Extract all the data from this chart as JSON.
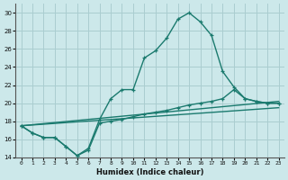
{
  "bg_color": "#cce8ea",
  "grid_color": "#aacdd0",
  "line_color": "#1a7a6e",
  "xlabel": "Humidex (Indice chaleur)",
  "xlim": [
    -0.5,
    23.5
  ],
  "ylim": [
    14,
    31
  ],
  "yticks": [
    14,
    16,
    18,
    20,
    22,
    24,
    26,
    28,
    30
  ],
  "xticks": [
    0,
    1,
    2,
    3,
    4,
    5,
    6,
    7,
    8,
    9,
    10,
    11,
    12,
    13,
    14,
    15,
    16,
    17,
    18,
    19,
    20,
    21,
    22,
    23
  ],
  "lines": [
    {
      "x": [
        0,
        1,
        2,
        3,
        4,
        5,
        6,
        7,
        8,
        9,
        10,
        11,
        12,
        13,
        14,
        15,
        16,
        17,
        18,
        19,
        20,
        21,
        22,
        23
      ],
      "y": [
        17.5,
        16.7,
        16.2,
        16.2,
        15.2,
        14.2,
        15.0,
        18.2,
        20.5,
        21.5,
        21.5,
        25.0,
        25.8,
        27.2,
        29.3,
        30.0,
        29.0,
        27.5,
        23.5,
        21.8,
        20.5,
        20.2,
        20.0,
        20.0
      ],
      "marker": true
    },
    {
      "x": [
        0,
        1,
        2,
        3,
        4,
        5,
        6,
        7,
        8,
        9,
        10,
        11,
        12,
        13,
        14,
        15,
        16,
        17,
        18,
        19,
        20,
        21,
        22,
        23
      ],
      "y": [
        17.5,
        16.7,
        16.2,
        16.2,
        15.2,
        14.2,
        14.8,
        17.8,
        18.0,
        18.2,
        18.5,
        18.8,
        19.0,
        19.2,
        19.5,
        19.8,
        20.0,
        20.2,
        20.5,
        21.5,
        20.5,
        20.2,
        20.0,
        20.0
      ],
      "marker": true
    },
    {
      "x": [
        0,
        23
      ],
      "y": [
        17.5,
        20.2
      ],
      "marker": false
    },
    {
      "x": [
        0,
        23
      ],
      "y": [
        17.5,
        19.5
      ],
      "marker": false
    }
  ]
}
